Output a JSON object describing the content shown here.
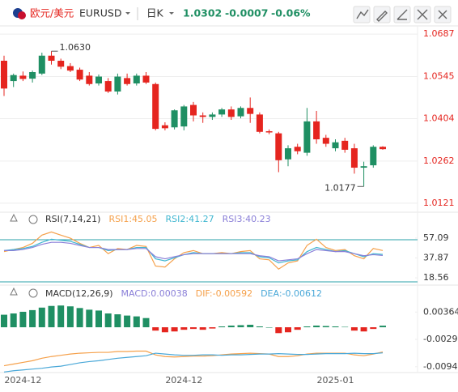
{
  "header": {
    "symbol": "欧元/美元",
    "code": "EURUSD",
    "period": "日K",
    "price": "1.0302",
    "change": "-0.0007",
    "change_pct": "-0.06%"
  },
  "chart_data": [
    {
      "type": "candlestick",
      "up_color": "#1f8f63",
      "down_color": "#e5251f",
      "grid": true,
      "categories": [
        null,
        null,
        "2024-12",
        null,
        null,
        null,
        null,
        null,
        null,
        null,
        null,
        null,
        null,
        null,
        null,
        null,
        null,
        null,
        null,
        "2024-12",
        null,
        null,
        null,
        null,
        null,
        null,
        null,
        null,
        null,
        null,
        null,
        null,
        null,
        null,
        null,
        "2025-01",
        null,
        null,
        null,
        null,
        null
      ],
      "high_label": "1.0630",
      "low_label": "1.0177",
      "ylim": [
        1.0091,
        1.072
      ],
      "yticks": [
        1.0687,
        1.0545,
        1.0404,
        1.0262,
        1.0121
      ],
      "open": [
        1.0598,
        1.053,
        1.0548,
        1.0538,
        1.0555,
        1.0615,
        1.0598,
        1.058,
        1.0568,
        1.0548,
        1.0522,
        1.053,
        1.0495,
        1.054,
        1.0522,
        1.0548,
        1.052,
        1.0382,
        1.0375,
        1.0378,
        1.045,
        1.0415,
        1.041,
        1.0418,
        1.0435,
        1.0412,
        1.044,
        1.0418,
        1.0362,
        1.0355,
        1.0268,
        1.031,
        1.029,
        1.0395,
        1.034,
        1.0305,
        1.033,
        1.0305,
        1.024,
        1.0248,
        1.031
      ],
      "high": [
        1.0615,
        1.0555,
        1.0562,
        1.0565,
        1.0625,
        1.063,
        1.0605,
        1.059,
        1.0575,
        1.056,
        1.0552,
        1.054,
        1.0555,
        1.0555,
        1.0555,
        1.056,
        1.0525,
        1.0392,
        1.0435,
        1.045,
        1.046,
        1.0425,
        1.0425,
        1.044,
        1.0445,
        1.0445,
        1.0475,
        1.0425,
        1.0368,
        1.036,
        1.0315,
        1.032,
        1.044,
        1.043,
        1.035,
        1.0335,
        1.034,
        1.032,
        1.026,
        1.0315,
        1.0312
      ],
      "low": [
        1.048,
        1.051,
        1.053,
        1.0525,
        1.055,
        1.0585,
        1.057,
        1.056,
        1.053,
        1.0515,
        1.0515,
        1.049,
        1.0485,
        1.0515,
        1.0515,
        1.052,
        1.0365,
        1.0365,
        1.0368,
        1.0365,
        1.0395,
        1.039,
        1.04,
        1.041,
        1.04,
        1.0405,
        1.039,
        1.0355,
        1.0352,
        1.0225,
        1.0245,
        1.0285,
        1.028,
        1.032,
        1.031,
        1.0295,
        1.029,
        1.022,
        1.0177,
        1.024,
        1.03
      ],
      "close": [
        1.0505,
        1.055,
        1.0537,
        1.056,
        1.0615,
        1.0598,
        1.0578,
        1.0565,
        1.0535,
        1.052,
        1.0545,
        1.0495,
        1.0545,
        1.052,
        1.0548,
        1.0525,
        1.037,
        1.0372,
        1.0432,
        1.0445,
        1.0415,
        1.041,
        1.0418,
        1.0435,
        1.041,
        1.044,
        1.042,
        1.036,
        1.0358,
        1.0265,
        1.0305,
        1.0295,
        1.0395,
        1.0335,
        1.032,
        1.0325,
        1.03,
        1.024,
        1.0245,
        1.031,
        1.0302
      ]
    },
    {
      "type": "line",
      "title": "RSI(7,14,21)",
      "ylim": [
        13.1,
        65.7
      ],
      "yticks": [
        57.09,
        37.87,
        18.56
      ],
      "levels": [
        55.5,
        14.7
      ],
      "level_color": "#28a0a8",
      "series": [
        {
          "name": "RSI1:45.05",
          "color": "#f5a04a",
          "values": [
            44,
            46,
            48,
            52,
            60,
            63,
            60,
            57,
            52,
            48,
            50,
            42,
            47,
            46,
            50,
            49,
            30,
            29,
            37,
            43,
            45,
            42,
            42,
            43,
            42,
            44,
            45,
            37,
            36,
            27,
            33,
            35,
            50,
            56,
            48,
            45,
            46,
            40,
            37,
            47,
            45.05
          ]
        },
        {
          "name": "RSI2:41.27",
          "color": "#3fb6d0",
          "values": [
            45,
            46,
            47,
            49,
            53,
            56,
            55,
            54,
            51,
            48,
            48,
            45,
            46,
            46,
            48,
            48,
            37,
            35,
            38,
            41,
            43,
            42,
            42,
            42,
            42,
            43,
            43,
            39,
            38,
            33,
            35,
            36,
            44,
            48,
            46,
            44,
            45,
            42,
            39,
            42,
            41.27
          ]
        },
        {
          "name": "RSI3:40.23",
          "color": "#8a7fd8",
          "values": [
            45,
            45,
            46,
            48,
            51,
            53,
            53,
            52,
            50,
            48,
            48,
            46,
            46,
            46,
            47,
            47,
            39,
            37,
            39,
            41,
            42,
            42,
            42,
            42,
            42,
            42,
            42,
            40,
            39,
            35,
            36,
            37,
            42,
            46,
            45,
            44,
            44,
            42,
            40,
            41,
            40.23
          ]
        }
      ]
    },
    {
      "type": "macd",
      "title": "MACD(12,26,9)",
      "ylim": [
        -0.01083,
        0.00621
      ],
      "yticks": [
        0.00364,
        {
          "value": -0.0029,
          "label": "-0.00290"
        },
        -0.00944
      ],
      "up_color": "#1f8f63",
      "down_color": "#e5251f",
      "series": [
        {
          "name": "MACD:0.00038",
          "color": "#8a7fd8",
          "bars": true,
          "values": [
            0.003,
            0.0033,
            0.0037,
            0.0041,
            0.0047,
            0.0051,
            0.0052,
            0.005,
            0.0046,
            0.0042,
            0.004,
            0.0033,
            0.0031,
            0.0028,
            0.0026,
            0.0022,
            -0.0008,
            -0.0012,
            -0.001,
            -0.0006,
            -0.0004,
            -0.0006,
            -0.0003,
            0.0002,
            0.0004,
            0.0005,
            0.0006,
            0.0002,
            0,
            -0.0014,
            -0.0012,
            -0.0006,
            0.0002,
            0.0004,
            0.0003,
            0.0002,
            0.0001,
            -0.0008,
            -0.001,
            -0.0004,
            0.00038
          ]
        },
        {
          "name": "DIF:-0.00592",
          "color": "#f5a04a",
          "values": [
            -0.0092,
            -0.0088,
            -0.0084,
            -0.008,
            -0.0074,
            -0.007,
            -0.0067,
            -0.0064,
            -0.0062,
            -0.0061,
            -0.006,
            -0.006,
            -0.0058,
            -0.0058,
            -0.0057,
            -0.0057,
            -0.0066,
            -0.007,
            -0.0071,
            -0.007,
            -0.0069,
            -0.0069,
            -0.0068,
            -0.0066,
            -0.0064,
            -0.0063,
            -0.0062,
            -0.0063,
            -0.0064,
            -0.007,
            -0.007,
            -0.0068,
            -0.0064,
            -0.0062,
            -0.0062,
            -0.0062,
            -0.0062,
            -0.0066,
            -0.0068,
            -0.0064,
            -0.00592
          ]
        },
        {
          "name": "DEA:-0.00612",
          "color": "#4aa8d8",
          "values": [
            -0.0107,
            -0.0104,
            -0.0102,
            -0.01,
            -0.0098,
            -0.0095,
            -0.0093,
            -0.0089,
            -0.0085,
            -0.0082,
            -0.008,
            -0.0077,
            -0.0074,
            -0.0072,
            -0.007,
            -0.0068,
            -0.0062,
            -0.0064,
            -0.0066,
            -0.0067,
            -0.0067,
            -0.0066,
            -0.0066,
            -0.0067,
            -0.0066,
            -0.0066,
            -0.0065,
            -0.0064,
            -0.0064,
            -0.0063,
            -0.0064,
            -0.0065,
            -0.0065,
            -0.0064,
            -0.0063,
            -0.0063,
            -0.0063,
            -0.0062,
            -0.0063,
            -0.0063,
            -0.00612
          ]
        }
      ]
    }
  ]
}
